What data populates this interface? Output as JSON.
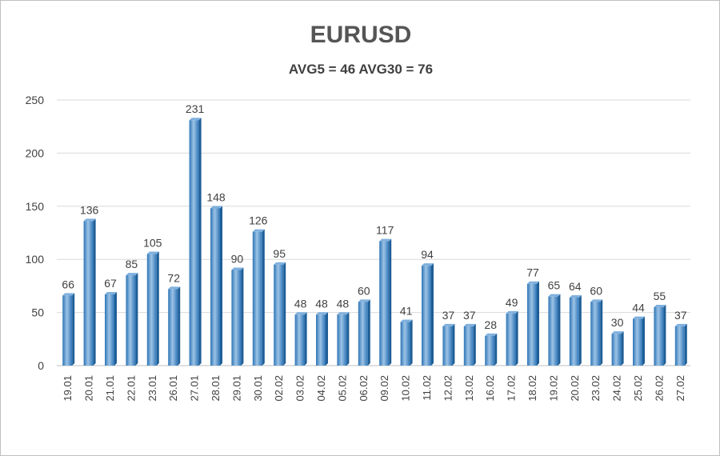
{
  "chart_data": {
    "type": "bar",
    "title": "EURUSD",
    "subtitle": "AVG5 = 46 AVG30 = 76",
    "xlabel": "",
    "ylabel": "",
    "ylim": [
      0,
      250
    ],
    "yticks": [
      "0",
      "50",
      "100",
      "150",
      "200",
      "250"
    ],
    "grid": true,
    "legend": "none",
    "bar_color": "#5b9bd5",
    "categories": [
      "19.01",
      "20.01",
      "21.01",
      "22.01",
      "23.01",
      "26.01",
      "27.01",
      "28.01",
      "29.01",
      "30.01",
      "02.02",
      "03.02",
      "04.02",
      "05.02",
      "06.02",
      "09.02",
      "10.02",
      "11.02",
      "12.02",
      "13.02",
      "16.02",
      "17.02",
      "18.02",
      "19.02",
      "20.02",
      "23.02",
      "24.02",
      "25.02",
      "26.02",
      "27.02"
    ],
    "values": [
      66,
      136,
      67,
      85,
      105,
      72,
      231,
      148,
      90,
      126,
      95,
      48,
      48,
      48,
      60,
      117,
      41,
      94,
      37,
      37,
      28,
      49,
      77,
      65,
      64,
      60,
      30,
      44,
      55,
      37
    ]
  }
}
